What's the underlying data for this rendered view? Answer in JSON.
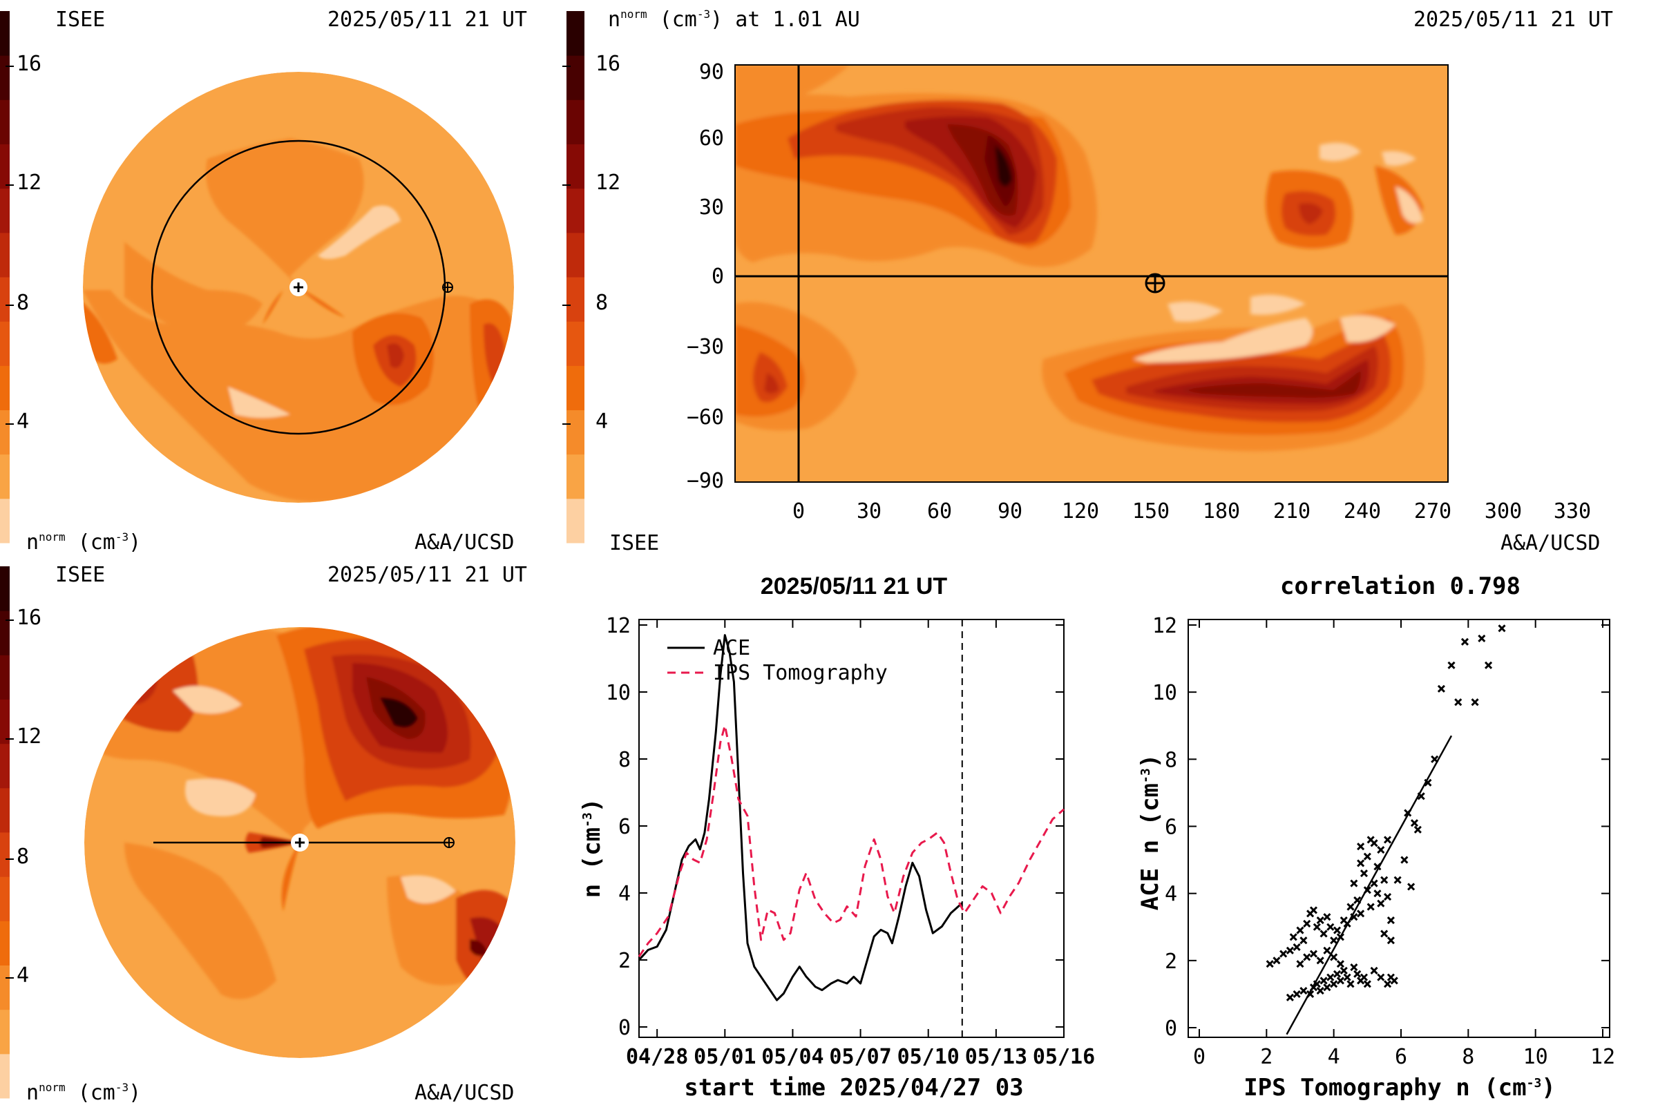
{
  "colors": {
    "background": "#ffffff",
    "levels": [
      "#fdd0a2",
      "#f9a445",
      "#f58b2a",
      "#ef6c0c",
      "#e65710",
      "#d8420f",
      "#bf2a0b",
      "#a4170a",
      "#860a05",
      "#6a0402",
      "#480101",
      "#2a0000"
    ],
    "ace_line": "#000000",
    "ips_line": "#e8194c"
  },
  "panel_top_left": {
    "label_left": "ISEE",
    "timestamp": "2025/05/11 21 UT",
    "colorbar_ticks": [
      "4",
      "8",
      "12",
      "16"
    ],
    "unit_label": "n^norm (cm^-3)",
    "unit_base": "n",
    "unit_sup": "norm",
    "unit_tail": " (cm",
    "unit_exp": "-3",
    "unit_close": ")",
    "credit": "A&A/UCSD",
    "view": "ecliptic"
  },
  "panel_bottom_left": {
    "label_left": "ISEE",
    "timestamp": "2025/05/11 21 UT",
    "colorbar_ticks": [
      "4",
      "8",
      "12",
      "16"
    ],
    "unit_label": "n^norm (cm^-3)",
    "unit_base": "n",
    "unit_sup": "norm",
    "unit_tail": " (cm",
    "unit_exp": "-3",
    "unit_close": ")",
    "credit": "A&A/UCSD",
    "view": "meridional"
  },
  "panel_top_right": {
    "title": "n^norm (cm^-3) at 1.01 AU",
    "title_base": "n",
    "title_sup": "norm",
    "title_tail": " (cm",
    "title_exp": "-3",
    "title_close": ") at 1.01 AU",
    "timestamp": "2025/05/11 21 UT",
    "colorbar_ticks": [
      "4",
      "8",
      "12",
      "16"
    ],
    "label_left": "ISEE",
    "credit": "A&A/UCSD",
    "x_ticks": [
      "0",
      "30",
      "60",
      "90",
      "120",
      "150",
      "180",
      "210",
      "240",
      "270",
      "300",
      "330"
    ],
    "y_ticks": [
      "90",
      "60",
      "30",
      "0",
      "−30",
      "−60",
      "−90"
    ],
    "earth_longitude": 151,
    "earth_latitude": -3
  },
  "chart_data": [
    {
      "type": "line",
      "title": "2025/05/11 21 UT",
      "xlabel": "start time 2025/04/27 03",
      "ylabel": "n (cm^-3)",
      "ylabel_base": "n (cm",
      "ylabel_exp": "-3",
      "ylabel_close": ")",
      "x_tick_labels": [
        "04/28",
        "05/01",
        "05/04",
        "05/07",
        "05/10",
        "05/13",
        "05/16"
      ],
      "x_tick_days": [
        1,
        4,
        7,
        10,
        13,
        16,
        19
      ],
      "xlim_days": [
        0.2,
        19.0
      ],
      "ylim": [
        0,
        12
      ],
      "y_ticks": [
        "0",
        "2",
        "4",
        "6",
        "8",
        "10",
        "12"
      ],
      "grid": false,
      "legend_position": "top-left",
      "current_time_day": 14.5,
      "series": [
        {
          "name": "ACE",
          "style": "solid",
          "points": [
            [
              0.2,
              2.0
            ],
            [
              0.6,
              2.3
            ],
            [
              1.0,
              2.4
            ],
            [
              1.4,
              2.9
            ],
            [
              1.8,
              4.1
            ],
            [
              2.1,
              5.0
            ],
            [
              2.4,
              5.4
            ],
            [
              2.7,
              5.6
            ],
            [
              2.9,
              5.3
            ],
            [
              3.1,
              5.8
            ],
            [
              3.3,
              6.8
            ],
            [
              3.6,
              8.8
            ],
            [
              3.8,
              10.5
            ],
            [
              4.0,
              11.7
            ],
            [
              4.2,
              11.2
            ],
            [
              4.4,
              10.3
            ],
            [
              4.6,
              7.5
            ],
            [
              4.8,
              4.6
            ],
            [
              5.0,
              2.5
            ],
            [
              5.3,
              1.8
            ],
            [
              5.6,
              1.5
            ],
            [
              6.0,
              1.1
            ],
            [
              6.3,
              0.8
            ],
            [
              6.6,
              1.0
            ],
            [
              7.0,
              1.5
            ],
            [
              7.3,
              1.8
            ],
            [
              7.6,
              1.5
            ],
            [
              8.0,
              1.2
            ],
            [
              8.3,
              1.1
            ],
            [
              8.7,
              1.3
            ],
            [
              9.0,
              1.4
            ],
            [
              9.4,
              1.3
            ],
            [
              9.7,
              1.5
            ],
            [
              10.0,
              1.3
            ],
            [
              10.3,
              2.0
            ],
            [
              10.6,
              2.7
            ],
            [
              10.9,
              2.9
            ],
            [
              11.2,
              2.8
            ],
            [
              11.4,
              2.5
            ],
            [
              11.7,
              3.3
            ],
            [
              12.0,
              4.2
            ],
            [
              12.3,
              4.9
            ],
            [
              12.6,
              4.5
            ],
            [
              12.9,
              3.5
            ],
            [
              13.2,
              2.8
            ],
            [
              13.6,
              3.0
            ],
            [
              14.0,
              3.4
            ],
            [
              14.5,
              3.7
            ]
          ]
        },
        {
          "name": "IPS Tomography",
          "style": "dashed",
          "points": [
            [
              0.2,
              2.1
            ],
            [
              0.6,
              2.5
            ],
            [
              1.0,
              2.8
            ],
            [
              1.5,
              3.3
            ],
            [
              2.0,
              4.6
            ],
            [
              2.3,
              5.2
            ],
            [
              2.6,
              5.0
            ],
            [
              2.9,
              4.9
            ],
            [
              3.2,
              5.6
            ],
            [
              3.5,
              7.0
            ],
            [
              3.8,
              8.5
            ],
            [
              4.0,
              9.0
            ],
            [
              4.3,
              8.0
            ],
            [
              4.6,
              6.8
            ],
            [
              5.0,
              6.3
            ],
            [
              5.3,
              4.2
            ],
            [
              5.6,
              2.6
            ],
            [
              5.9,
              3.5
            ],
            [
              6.2,
              3.4
            ],
            [
              6.6,
              2.6
            ],
            [
              6.9,
              2.8
            ],
            [
              7.3,
              4.1
            ],
            [
              7.6,
              4.6
            ],
            [
              8.0,
              3.8
            ],
            [
              8.4,
              3.4
            ],
            [
              8.8,
              3.1
            ],
            [
              9.1,
              3.2
            ],
            [
              9.4,
              3.6
            ],
            [
              9.8,
              3.3
            ],
            [
              10.2,
              4.8
            ],
            [
              10.6,
              5.6
            ],
            [
              10.9,
              5.0
            ],
            [
              11.2,
              3.9
            ],
            [
              11.5,
              3.4
            ],
            [
              11.9,
              4.5
            ],
            [
              12.3,
              5.2
            ],
            [
              12.7,
              5.5
            ],
            [
              13.0,
              5.6
            ],
            [
              13.4,
              5.8
            ],
            [
              13.7,
              5.5
            ],
            [
              14.0,
              4.6
            ],
            [
              14.3,
              3.8
            ],
            [
              14.6,
              3.4
            ],
            [
              15.0,
              3.8
            ],
            [
              15.4,
              4.2
            ],
            [
              15.8,
              4.0
            ],
            [
              16.2,
              3.4
            ],
            [
              16.6,
              3.9
            ],
            [
              17.0,
              4.3
            ],
            [
              17.5,
              5.0
            ],
            [
              18.0,
              5.6
            ],
            [
              18.5,
              6.2
            ],
            [
              19.0,
              6.5
            ]
          ]
        }
      ]
    },
    {
      "type": "scatter",
      "title": "correlation 0.798",
      "xlabel": "IPS Tomography n (cm^-3)",
      "xlabel_base": "IPS Tomography n (cm",
      "xlabel_exp": "-3",
      "xlabel_close": ")",
      "ylabel": "ACE n (cm^-3)",
      "ylabel_base": "ACE n (cm",
      "ylabel_exp": "-3",
      "ylabel_close": ")",
      "xlim": [
        0,
        12
      ],
      "ylim": [
        0,
        12
      ],
      "x_ticks": [
        "0",
        "2",
        "4",
        "6",
        "8",
        "10",
        "12"
      ],
      "y_ticks": [
        "0",
        "2",
        "4",
        "6",
        "8",
        "10",
        "12"
      ],
      "grid": false,
      "fit_line": [
        [
          2.6,
          -0.2
        ],
        [
          7.5,
          8.7
        ]
      ],
      "points": [
        [
          2.1,
          1.9
        ],
        [
          2.3,
          2.0
        ],
        [
          2.5,
          2.2
        ],
        [
          2.7,
          2.3
        ],
        [
          2.8,
          2.7
        ],
        [
          2.9,
          2.4
        ],
        [
          3.0,
          2.9
        ],
        [
          3.1,
          2.6
        ],
        [
          3.2,
          3.1
        ],
        [
          3.3,
          3.4
        ],
        [
          3.4,
          3.5
        ],
        [
          3.5,
          3.0
        ],
        [
          3.6,
          3.2
        ],
        [
          3.7,
          2.8
        ],
        [
          3.8,
          3.3
        ],
        [
          3.9,
          3.0
        ],
        [
          4.0,
          2.6
        ],
        [
          4.1,
          2.9
        ],
        [
          4.2,
          2.7
        ],
        [
          4.3,
          3.2
        ],
        [
          4.4,
          3.1
        ],
        [
          4.5,
          3.6
        ],
        [
          4.6,
          3.3
        ],
        [
          4.7,
          3.8
        ],
        [
          4.8,
          3.4
        ],
        [
          4.9,
          4.6
        ],
        [
          5.0,
          4.1
        ],
        [
          5.1,
          3.6
        ],
        [
          5.2,
          4.3
        ],
        [
          5.3,
          4.0
        ],
        [
          5.4,
          3.7
        ],
        [
          5.5,
          4.4
        ],
        [
          5.6,
          3.9
        ],
        [
          5.7,
          3.2
        ],
        [
          4.6,
          4.3
        ],
        [
          4.8,
          4.9
        ],
        [
          5.0,
          5.1
        ],
        [
          5.2,
          5.5
        ],
        [
          5.4,
          5.3
        ],
        [
          5.6,
          5.6
        ],
        [
          4.8,
          5.4
        ],
        [
          5.1,
          5.6
        ],
        [
          5.3,
          4.8
        ],
        [
          5.5,
          2.8
        ],
        [
          5.7,
          2.6
        ],
        [
          5.9,
          4.4
        ],
        [
          6.3,
          4.2
        ],
        [
          2.7,
          0.9
        ],
        [
          2.9,
          1.0
        ],
        [
          3.1,
          1.1
        ],
        [
          3.3,
          1.0
        ],
        [
          3.4,
          1.2
        ],
        [
          3.5,
          1.3
        ],
        [
          3.6,
          1.1
        ],
        [
          3.7,
          1.4
        ],
        [
          3.8,
          1.2
        ],
        [
          3.9,
          1.5
        ],
        [
          4.0,
          1.3
        ],
        [
          4.1,
          1.6
        ],
        [
          4.2,
          1.4
        ],
        [
          4.3,
          1.7
        ],
        [
          4.4,
          1.5
        ],
        [
          4.5,
          1.3
        ],
        [
          4.6,
          1.8
        ],
        [
          4.7,
          1.6
        ],
        [
          4.8,
          1.4
        ],
        [
          4.9,
          1.5
        ],
        [
          5.0,
          1.3
        ],
        [
          5.2,
          1.7
        ],
        [
          5.4,
          1.5
        ],
        [
          5.6,
          1.3
        ],
        [
          5.7,
          1.5
        ],
        [
          5.8,
          1.4
        ],
        [
          3.0,
          1.9
        ],
        [
          3.2,
          2.1
        ],
        [
          3.4,
          2.2
        ],
        [
          3.6,
          2.0
        ],
        [
          3.8,
          2.3
        ],
        [
          4.0,
          2.1
        ],
        [
          4.2,
          1.9
        ],
        [
          6.1,
          5.0
        ],
        [
          6.4,
          6.1
        ],
        [
          6.6,
          6.9
        ],
        [
          6.8,
          7.3
        ],
        [
          7.0,
          8.0
        ],
        [
          7.2,
          10.1
        ],
        [
          7.5,
          10.8
        ],
        [
          7.7,
          9.7
        ],
        [
          7.9,
          11.5
        ],
        [
          8.2,
          9.7
        ],
        [
          8.4,
          11.6
        ],
        [
          8.6,
          10.8
        ],
        [
          9.0,
          11.9
        ],
        [
          6.5,
          5.9
        ],
        [
          6.2,
          6.4
        ]
      ]
    }
  ]
}
